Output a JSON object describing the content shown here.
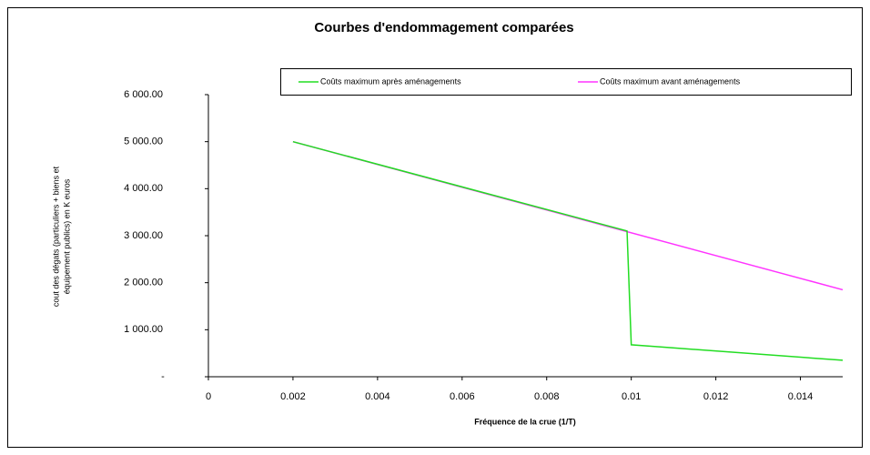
{
  "chart_data": {
    "type": "line",
    "title": "Courbes d'endommagement comparées",
    "x_label": "Fréquence de la crue (1/T)",
    "y_label": [
      "cout des dégats (particuliers + biens et",
      "équipement publics) en K euros"
    ],
    "xlim": [
      0,
      0.015
    ],
    "xticks": [
      0,
      0.002,
      0.004,
      0.006,
      0.008,
      0.01,
      0.012,
      0.014
    ],
    "ylim": [
      0,
      6000
    ],
    "yticks": [
      {
        "value": 0,
        "label": "-"
      },
      {
        "value": 1000,
        "label": "1 000.00"
      },
      {
        "value": 2000,
        "label": "2 000.00"
      },
      {
        "value": 3000,
        "label": "3 000.00"
      },
      {
        "value": 4000,
        "label": "4 000.00"
      },
      {
        "value": 5000,
        "label": "5 000.00"
      },
      {
        "value": 6000,
        "label": "6 000.00"
      }
    ],
    "legend": "top-right",
    "series": [
      {
        "name": "Coûts maximum avant aménagements",
        "color": "#ff33ff",
        "x": [
          0.002,
          0.015
        ],
        "values": [
          5000,
          1850
        ]
      },
      {
        "name": "Coûts maximum après aménagements",
        "color": "#22dd22",
        "x": [
          0.002,
          0.0099,
          0.01,
          0.015
        ],
        "values": [
          5000,
          3100,
          680,
          350
        ]
      }
    ]
  }
}
